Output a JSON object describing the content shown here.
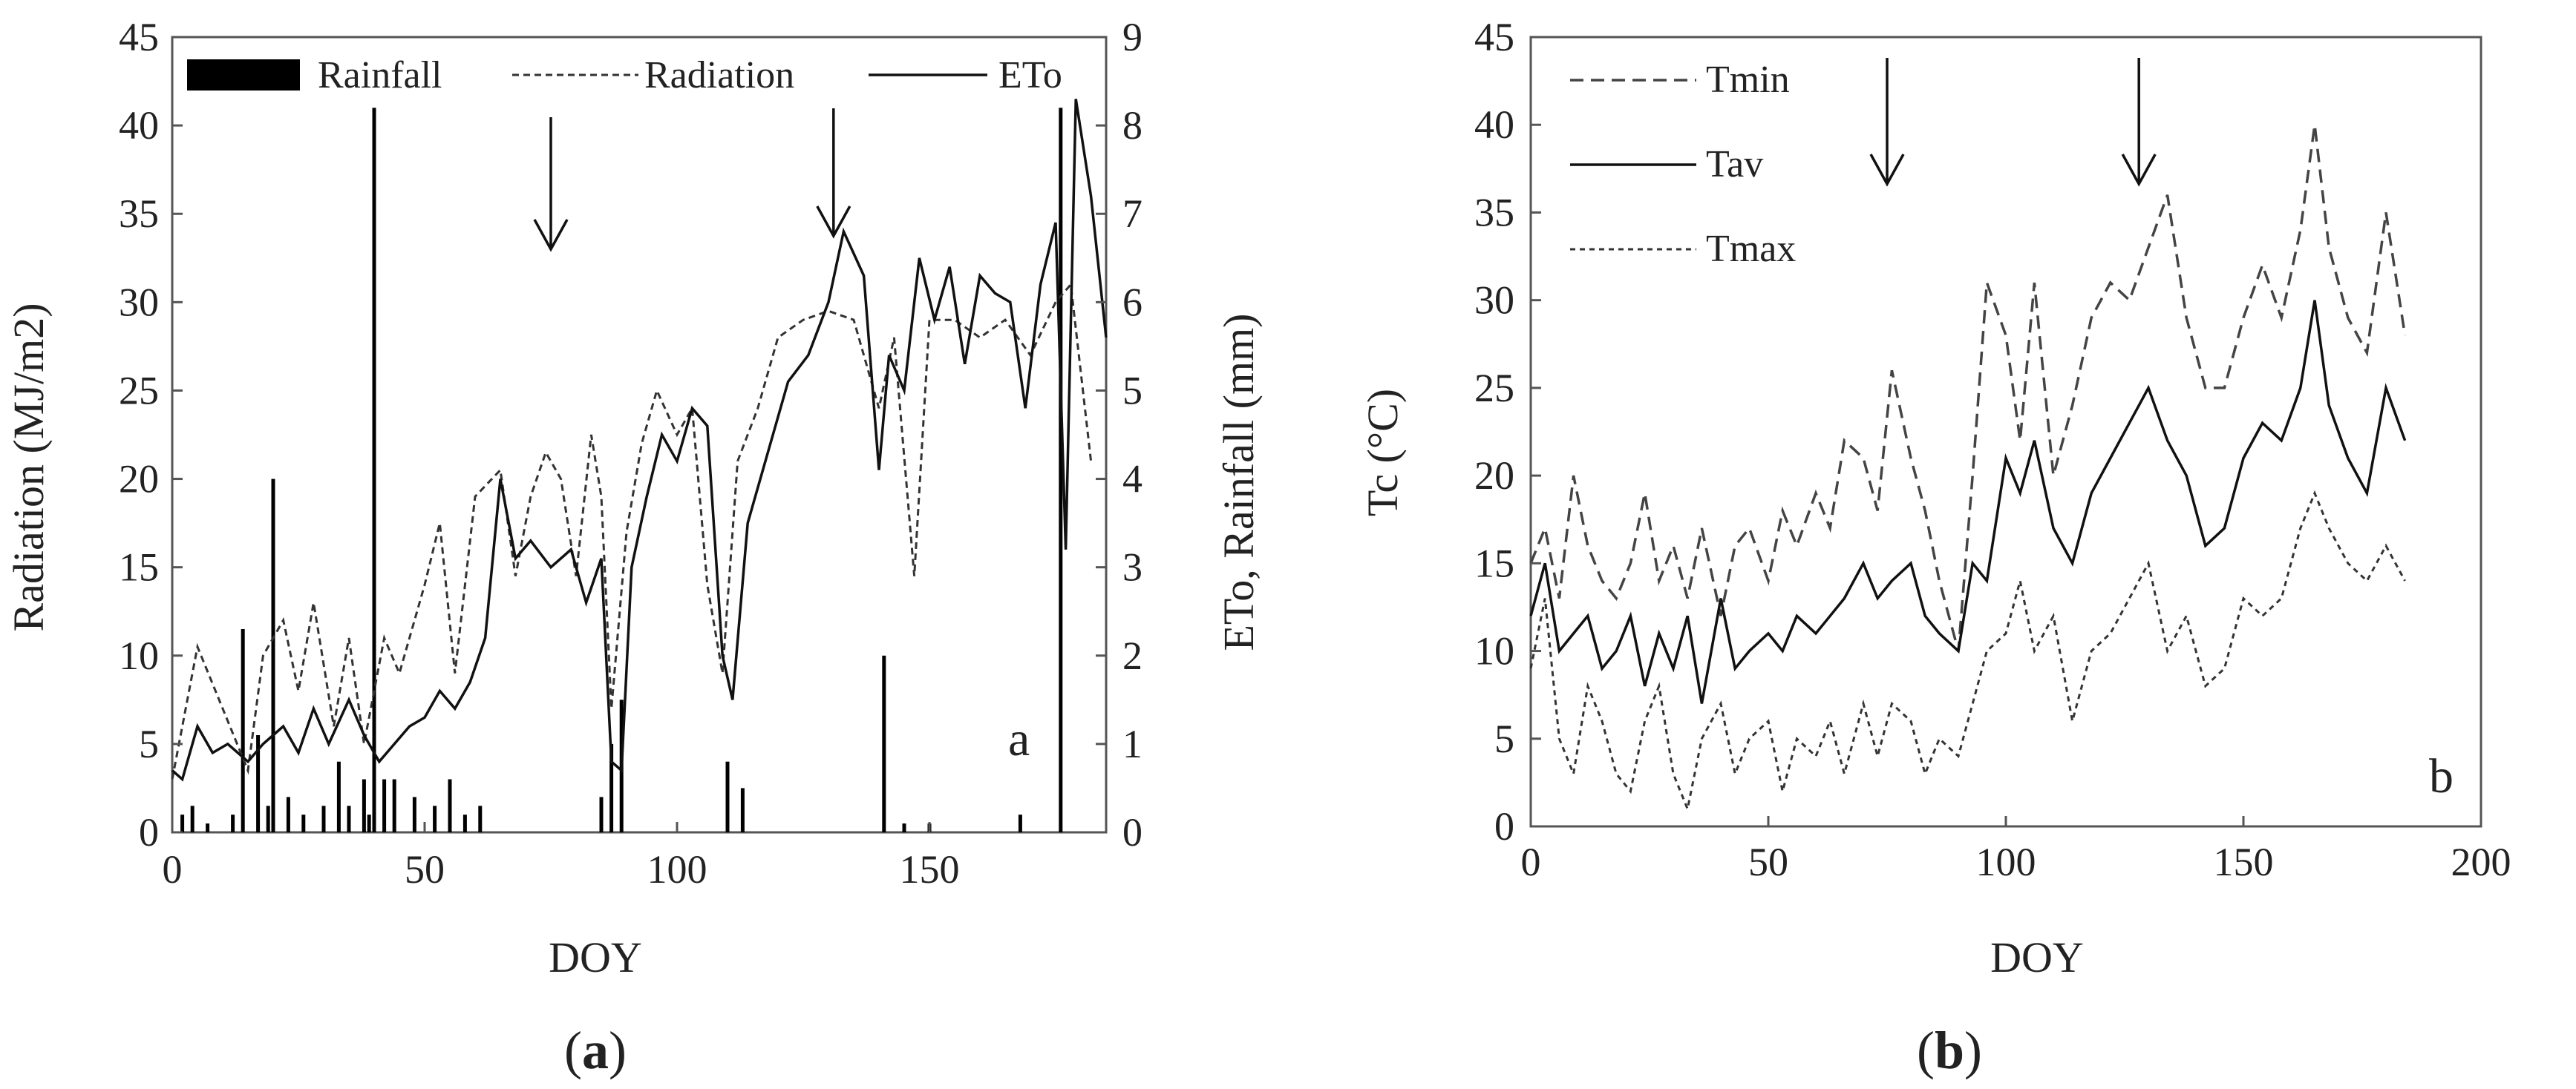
{
  "chart_data": [
    {
      "panel": "a",
      "type": "line",
      "caption": {
        "open": "(",
        "letter": "a",
        "close": ")"
      },
      "corner_label": "a",
      "xlabel": "DOY",
      "ylabel_left": "Radiation  (MJ/m2)",
      "ylabel_right": "ETo, Rainfall  (mm)",
      "xlim": [
        0,
        185
      ],
      "ylim_left": [
        0,
        45
      ],
      "ylim_right": [
        0,
        9
      ],
      "xticks": [
        0,
        50,
        100,
        150
      ],
      "yticks_left": [
        0,
        5,
        10,
        15,
        20,
        25,
        30,
        35,
        40,
        45
      ],
      "yticks_right": [
        0,
        1,
        2,
        3,
        4,
        5,
        6,
        7,
        8,
        9
      ],
      "legend": [
        "Rainfall",
        "Radiation",
        "ETo"
      ],
      "legend_position": "top",
      "grid": false,
      "arrows_at_doy": [
        75,
        131
      ],
      "series": [
        {
          "name": "Rainfall",
          "axis": "right",
          "style": "bars",
          "x": [
            2,
            4,
            7,
            12,
            14,
            17,
            19,
            20,
            23,
            26,
            30,
            33,
            35,
            38,
            39,
            40,
            42,
            44,
            48,
            52,
            55,
            58,
            61,
            85,
            87,
            89,
            110,
            113,
            141,
            145,
            150,
            168,
            176
          ],
          "values": [
            0.2,
            0.3,
            0.1,
            0.2,
            2.3,
            1.1,
            0.3,
            4.0,
            0.4,
            0.2,
            0.3,
            0.8,
            0.3,
            0.6,
            0.2,
            8.2,
            0.6,
            0.6,
            0.4,
            0.3,
            0.6,
            0.2,
            0.3,
            0.4,
            1.0,
            1.5,
            0.8,
            0.5,
            2.0,
            0.1,
            0.1,
            0.2,
            8.2
          ]
        },
        {
          "name": "Radiation",
          "axis": "left",
          "style": "dashed",
          "x": [
            0,
            5,
            10,
            15,
            18,
            22,
            25,
            28,
            32,
            35,
            38,
            42,
            45,
            50,
            53,
            56,
            60,
            65,
            68,
            71,
            74,
            77,
            80,
            83,
            85,
            87,
            90,
            93,
            96,
            100,
            103,
            106,
            109,
            112,
            116,
            120,
            125,
            130,
            135,
            140,
            143,
            147,
            150,
            155,
            160,
            165,
            170,
            175,
            178,
            182
          ],
          "y": [
            3,
            10.5,
            7,
            3.5,
            10,
            12,
            8,
            13,
            6,
            11,
            5,
            11,
            9,
            14,
            17.5,
            9,
            19,
            20.5,
            14.5,
            19,
            21.5,
            20,
            14.5,
            22.5,
            19,
            7,
            17,
            22,
            25,
            22.5,
            24,
            14,
            9,
            21,
            24,
            28,
            29,
            29.5,
            29,
            24,
            28,
            14.5,
            29,
            29,
            28,
            29,
            27,
            30,
            31,
            21
          ]
        },
        {
          "name": "ETo",
          "axis": "right",
          "style": "solid",
          "x": [
            0,
            2,
            5,
            8,
            11,
            15,
            18,
            22,
            25,
            28,
            31,
            35,
            38,
            41,
            44,
            47,
            50,
            53,
            56,
            59,
            62,
            65,
            68,
            71,
            75,
            79,
            82,
            85,
            87,
            89,
            91,
            94,
            97,
            100,
            103,
            106,
            109,
            111,
            114,
            118,
            122,
            126,
            130,
            133,
            137,
            140,
            142,
            145,
            148,
            151,
            154,
            157,
            160,
            163,
            166,
            169,
            172,
            175,
            177,
            179,
            182,
            185
          ],
          "y": [
            0.7,
            0.6,
            1.2,
            0.9,
            1.0,
            0.8,
            1.0,
            1.2,
            0.9,
            1.4,
            1.0,
            1.5,
            1.1,
            0.8,
            1.0,
            1.2,
            1.3,
            1.6,
            1.4,
            1.7,
            2.2,
            4.0,
            3.1,
            3.3,
            3.0,
            3.2,
            2.6,
            3.1,
            0.8,
            0.7,
            3.0,
            3.8,
            4.5,
            4.2,
            4.8,
            4.6,
            2.0,
            1.5,
            3.5,
            4.3,
            5.1,
            5.4,
            6.0,
            6.8,
            6.3,
            4.1,
            5.4,
            5.0,
            6.5,
            5.8,
            6.4,
            5.3,
            6.3,
            6.1,
            6.0,
            4.8,
            6.2,
            6.9,
            3.2,
            8.3,
            7.2,
            5.6
          ]
        }
      ]
    },
    {
      "panel": "b",
      "type": "line",
      "caption": {
        "open": "(",
        "letter": "b",
        "close": ")"
      },
      "corner_label": "b",
      "xlabel": "DOY",
      "ylabel": "Tc (°C)",
      "xlim": [
        0,
        200
      ],
      "ylim": [
        0,
        45
      ],
      "xticks": [
        0,
        50,
        100,
        150,
        200
      ],
      "yticks": [
        0,
        5,
        10,
        15,
        20,
        25,
        30,
        35,
        40,
        45
      ],
      "legend": [
        "Tmin",
        "Tav",
        "Tmax"
      ],
      "legend_position": "top-left",
      "grid": false,
      "arrows_at_doy": [
        75,
        128
      ],
      "series": [
        {
          "name": "Tmin",
          "style": "dashed",
          "x": [
            0,
            3,
            6,
            9,
            12,
            15,
            18,
            21,
            24,
            27,
            30,
            33,
            36,
            40,
            43,
            46,
            50,
            53,
            56,
            60,
            63,
            66,
            70,
            73,
            76,
            80,
            83,
            86,
            90,
            93,
            96,
            100,
            103,
            106,
            110,
            114,
            118,
            122,
            126,
            130,
            134,
            138,
            142,
            146,
            150,
            154,
            158,
            162,
            165,
            168,
            172,
            176,
            180,
            184
          ],
          "y": [
            15,
            17,
            13,
            20,
            16,
            14,
            13,
            15,
            19,
            14,
            16,
            13,
            17,
            12,
            16,
            17,
            14,
            18,
            16,
            19,
            17,
            22,
            21,
            18,
            26,
            21,
            18,
            14,
            10,
            20,
            31,
            28,
            22,
            31,
            20,
            24,
            29,
            31,
            30,
            33,
            36,
            29,
            25,
            25,
            29,
            32,
            29,
            34,
            40,
            33,
            29,
            27,
            35,
            28
          ]
        },
        {
          "name": "Tav",
          "style": "solid",
          "x": [
            0,
            3,
            6,
            9,
            12,
            15,
            18,
            21,
            24,
            27,
            30,
            33,
            36,
            40,
            43,
            46,
            50,
            53,
            56,
            60,
            63,
            66,
            70,
            73,
            76,
            80,
            83,
            86,
            90,
            93,
            96,
            100,
            103,
            106,
            110,
            114,
            118,
            122,
            126,
            130,
            134,
            138,
            142,
            146,
            150,
            154,
            158,
            162,
            165,
            168,
            172,
            176,
            180,
            184
          ],
          "y": [
            12,
            15,
            10,
            11,
            12,
            9,
            10,
            12,
            8,
            11,
            9,
            12,
            7,
            13,
            9,
            10,
            11,
            10,
            12,
            11,
            12,
            13,
            15,
            13,
            14,
            15,
            12,
            11,
            10,
            15,
            14,
            21,
            19,
            22,
            17,
            15,
            19,
            21,
            23,
            25,
            22,
            20,
            16,
            17,
            21,
            23,
            22,
            25,
            30,
            24,
            21,
            19,
            25,
            22
          ]
        },
        {
          "name": "Tmax",
          "style": "dotted",
          "x": [
            0,
            3,
            6,
            9,
            12,
            15,
            18,
            21,
            24,
            27,
            30,
            33,
            36,
            40,
            43,
            46,
            50,
            53,
            56,
            60,
            63,
            66,
            70,
            73,
            76,
            80,
            83,
            86,
            90,
            93,
            96,
            100,
            103,
            106,
            110,
            114,
            118,
            122,
            126,
            130,
            134,
            138,
            142,
            146,
            150,
            154,
            158,
            162,
            165,
            168,
            172,
            176,
            180,
            184
          ],
          "y": [
            9,
            13,
            5,
            3,
            8,
            6,
            3,
            2,
            6,
            8,
            3,
            1,
            5,
            7,
            3,
            5,
            6,
            2,
            5,
            4,
            6,
            3,
            7,
            4,
            7,
            6,
            3,
            5,
            4,
            7,
            10,
            11,
            14,
            10,
            12,
            6,
            10,
            11,
            13,
            15,
            10,
            12,
            8,
            9,
            13,
            12,
            13,
            17,
            19,
            17,
            15,
            14,
            16,
            14
          ]
        }
      ]
    }
  ]
}
